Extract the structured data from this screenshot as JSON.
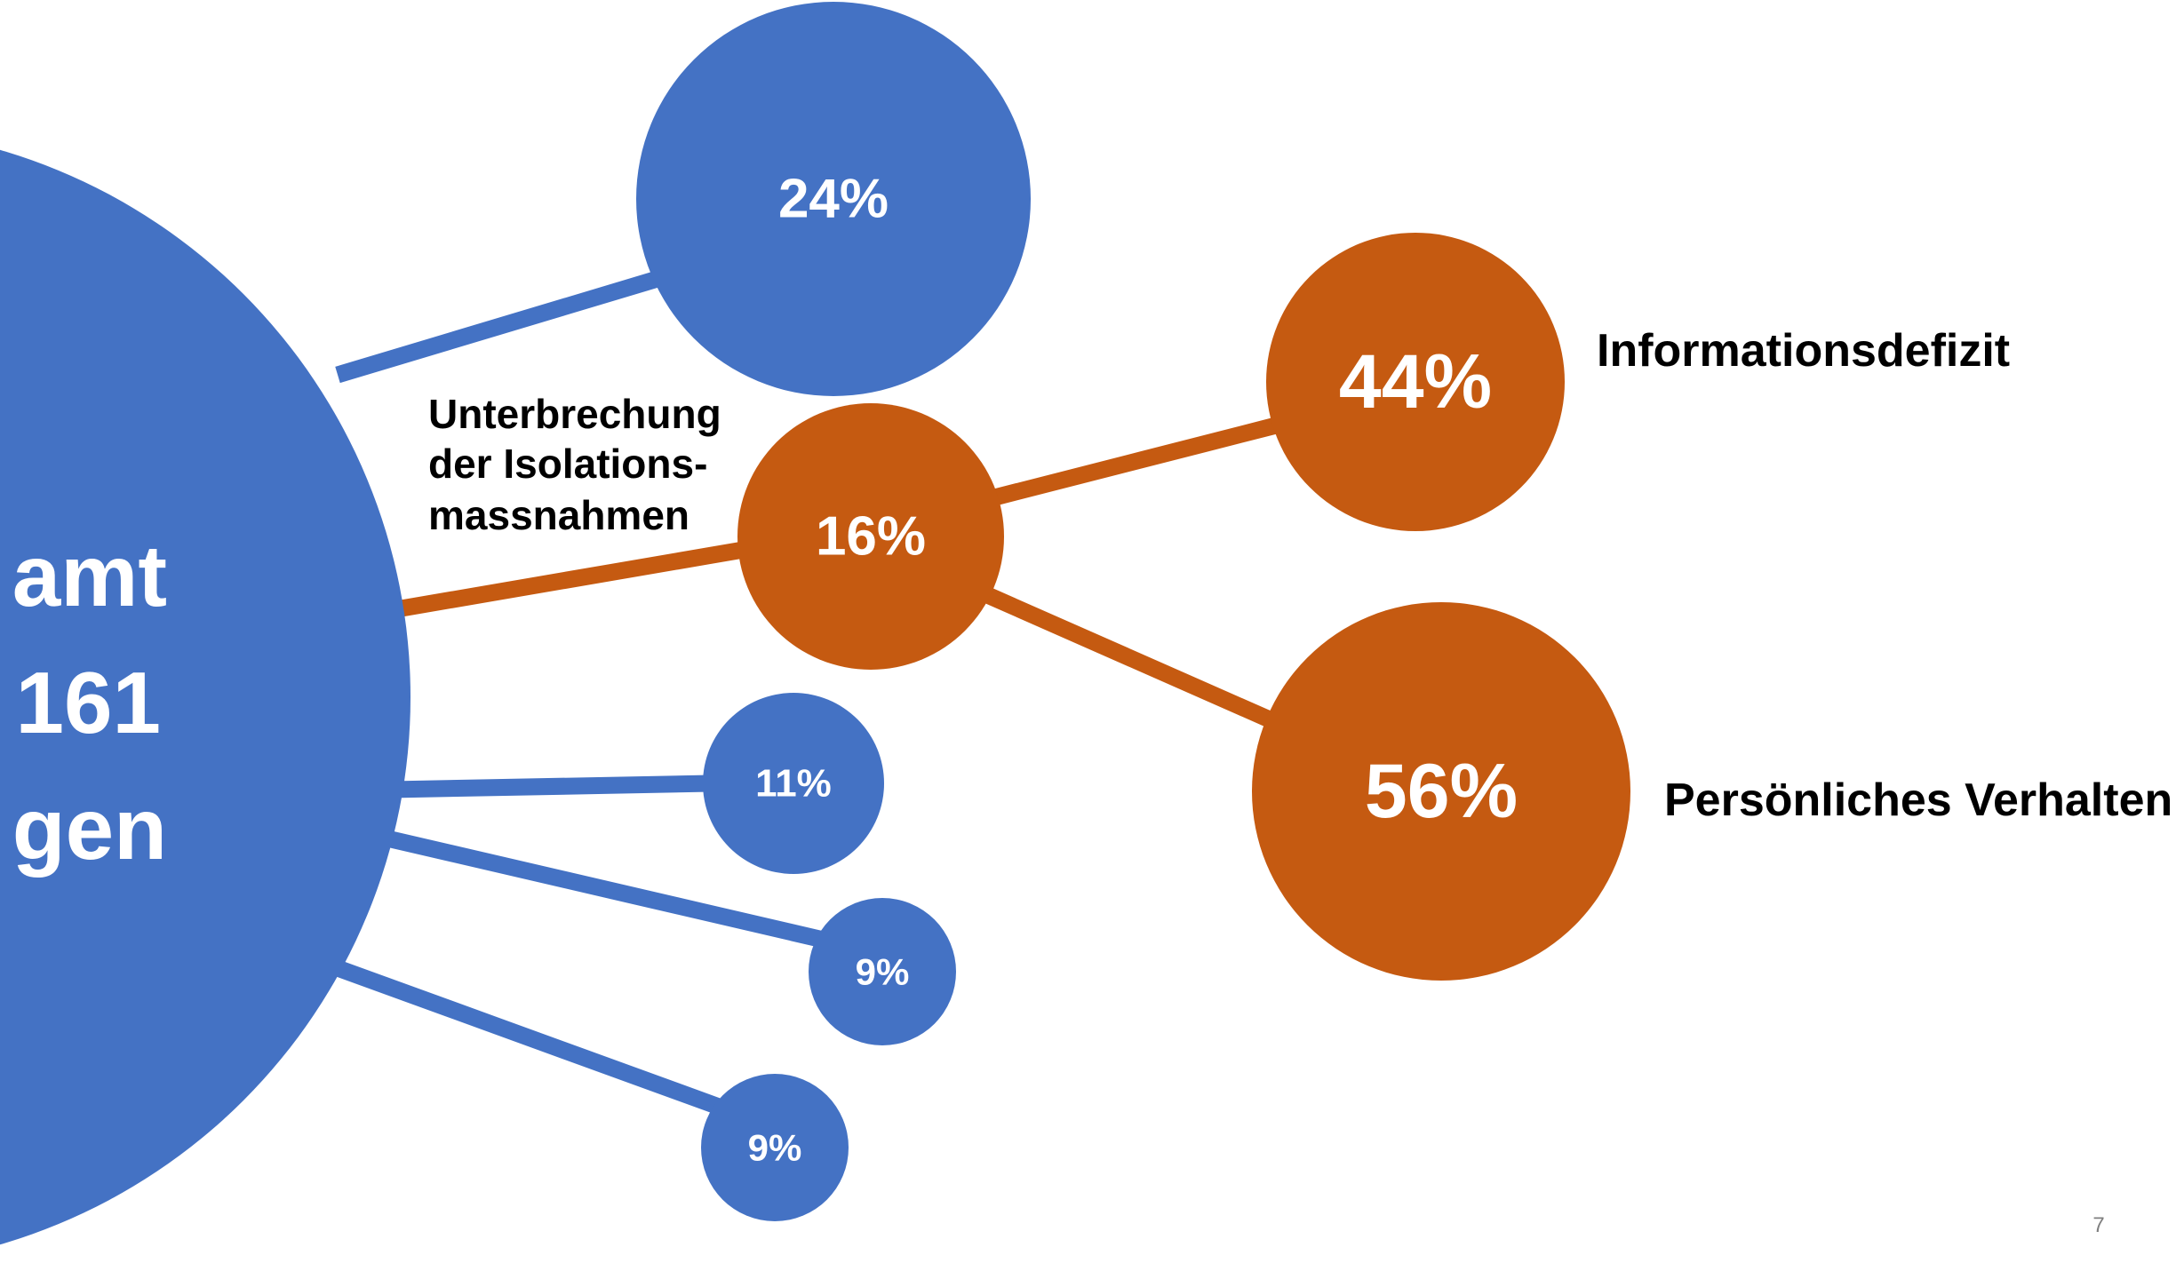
{
  "colors": {
    "primary": "#4472C4",
    "accent": "#C55A11",
    "label": "#000000",
    "value_text": "#FFFFFF"
  },
  "center": {
    "lines": [
      "amt",
      "161",
      "gen"
    ]
  },
  "branches": [
    {
      "value": "24%",
      "percent": 24
    },
    {
      "value": "16%",
      "percent": 16,
      "label_lines": [
        "Unterbrechung",
        "der Isolations-",
        "massnahmen"
      ]
    },
    {
      "value": "11%",
      "percent": 11
    },
    {
      "value": "9%",
      "percent": 9
    },
    {
      "value": "9%",
      "percent": 9
    }
  ],
  "sub_branches": [
    {
      "value": "44%",
      "percent": 44,
      "label": "Informationsdefizit"
    },
    {
      "value": "56%",
      "percent": 56,
      "label": "Persönliches Verhalten"
    }
  ],
  "page_number": "7"
}
